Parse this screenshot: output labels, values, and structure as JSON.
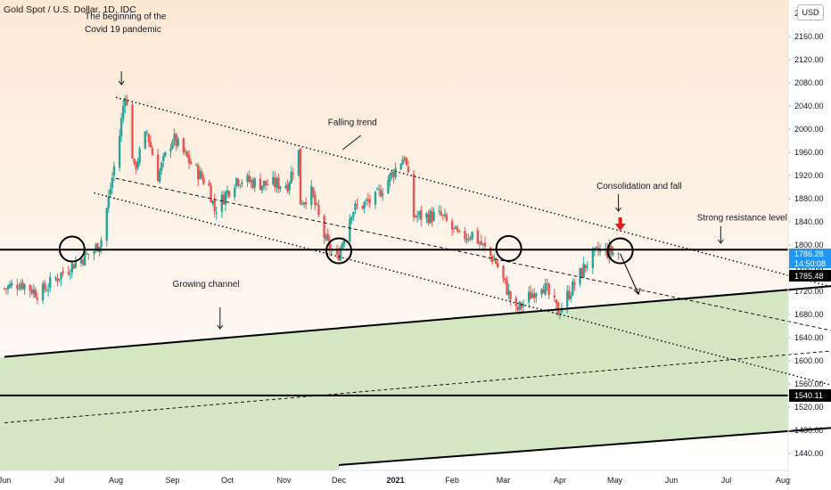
{
  "header": {
    "title": "Gold Spot / U.S. Dollar, 1D, IDC",
    "currency_button": "USD"
  },
  "colors": {
    "up": "#26a69a",
    "down": "#ef5350",
    "channel_fill": "#cfe3bd",
    "bg_top": "#fde8d4",
    "bg_bottom": "#ffffff",
    "line": "#000000",
    "arrow_red": "#e31b1b",
    "price_tag_blue": "#2196f3"
  },
  "chart_data": {
    "type": "candlestick",
    "title": "Gold Spot / U.S. Dollar, 1D, IDC",
    "y_axis": {
      "ylim": [
        1410,
        2240
      ],
      "ticks": [
        2160,
        2120,
        2080,
        2040,
        2000,
        1960,
        1920,
        1880,
        1840,
        1800,
        1760,
        1720,
        1680,
        1640,
        1600,
        1560,
        1520,
        1480,
        1440
      ],
      "tick_labels": [
        "2160.00",
        "2120.00",
        "2080.00",
        "2040.00",
        "2000.00",
        "1960.00",
        "1920.00",
        "1880.00",
        "1840.00",
        "1800.00",
        "1760.00",
        "1720.00",
        "1680.00",
        "1640.00",
        "1600.00",
        "1560.00",
        "1520.00",
        "1480.00",
        "1440.00"
      ],
      "top_partial_label": "22"
    },
    "x_axis": {
      "range": [
        "2020-06-01",
        "2021-08-31"
      ],
      "ticks": [
        {
          "label": "Jun",
          "date": "2020-06-01"
        },
        {
          "label": "Jul",
          "date": "2020-07-01"
        },
        {
          "label": "Aug",
          "date": "2020-08-01"
        },
        {
          "label": "Sep",
          "date": "2020-09-01"
        },
        {
          "label": "Oct",
          "date": "2020-10-01"
        },
        {
          "label": "Nov",
          "date": "2020-11-01"
        },
        {
          "label": "Dec",
          "date": "2020-12-01"
        },
        {
          "label": "2021",
          "date": "2021-01-01",
          "bold": true
        },
        {
          "label": "Feb",
          "date": "2021-02-01"
        },
        {
          "label": "Mar",
          "date": "2021-03-01"
        },
        {
          "label": "Apr",
          "date": "2021-04-01"
        },
        {
          "label": "May",
          "date": "2021-05-01"
        },
        {
          "label": "Jun",
          "date": "2021-06-01"
        },
        {
          "label": "Jul",
          "date": "2021-07-01"
        },
        {
          "label": "Aug",
          "date": "2021-08-01"
        }
      ]
    },
    "price_path": [
      [
        "2020-06-01",
        1725
      ],
      [
        "2020-06-10",
        1735
      ],
      [
        "2020-06-20",
        1715
      ],
      [
        "2020-06-30",
        1745
      ],
      [
        "2020-07-10",
        1770
      ],
      [
        "2020-07-20",
        1790
      ],
      [
        "2020-07-24",
        1810
      ],
      [
        "2020-07-28",
        1880
      ],
      [
        "2020-08-03",
        1990
      ],
      [
        "2020-08-06",
        2065
      ],
      [
        "2020-08-11",
        1930
      ],
      [
        "2020-08-18",
        1995
      ],
      [
        "2020-08-24",
        1920
      ],
      [
        "2020-09-01",
        1985
      ],
      [
        "2020-09-10",
        1945
      ],
      [
        "2020-09-21",
        1900
      ],
      [
        "2020-09-24",
        1860
      ],
      [
        "2020-10-06",
        1915
      ],
      [
        "2020-10-20",
        1905
      ],
      [
        "2020-11-03",
        1905
      ],
      [
        "2020-11-09",
        1960
      ],
      [
        "2020-11-10",
        1875
      ],
      [
        "2020-11-16",
        1890
      ],
      [
        "2020-11-24",
        1805
      ],
      [
        "2020-11-30",
        1775
      ],
      [
        "2020-12-08",
        1860
      ],
      [
        "2020-12-21",
        1880
      ],
      [
        "2021-01-06",
        1955
      ],
      [
        "2021-01-11",
        1850
      ],
      [
        "2021-01-26",
        1850
      ],
      [
        "2021-02-05",
        1812
      ],
      [
        "2021-02-12",
        1820
      ],
      [
        "2021-02-25",
        1770
      ],
      [
        "2021-03-08",
        1685
      ],
      [
        "2021-03-22",
        1735
      ],
      [
        "2021-03-31",
        1685
      ],
      [
        "2021-04-15",
        1765
      ],
      [
        "2021-04-22",
        1790
      ],
      [
        "2021-05-03",
        1786
      ]
    ],
    "horizontal_levels": [
      {
        "value": 1792,
        "label": "Strong resistance level"
      },
      {
        "value": 1540.11,
        "tag": "1540.11"
      }
    ],
    "price_tags": {
      "current": "1786.28",
      "countdown": "14:50:08",
      "level": "1785.48"
    },
    "lines": {
      "falling_trend_top": {
        "from": [
          "2020-08-01",
          2055
        ],
        "to": [
          "2021-08-31",
          1725
        ]
      },
      "falling_trend_mid": {
        "from": [
          "2020-08-01",
          1915
        ],
        "to": [
          "2021-08-31",
          1650
        ]
      },
      "falling_trend_bottom": {
        "from": [
          "2020-07-20",
          1890
        ],
        "to": [
          "2021-08-31",
          1555
        ]
      },
      "growing_channel_top": {
        "from": [
          "2020-06-01",
          1607
        ],
        "to": [
          "2021-08-31",
          1730
        ]
      },
      "growing_channel_mid": {
        "from": [
          "2020-06-01",
          1493
        ],
        "to": [
          "2021-08-31",
          1618
        ]
      },
      "growing_channel_bottom": {
        "from": [
          "2020-12-01",
          1420
        ],
        "to": [
          "2021-08-31",
          1485
        ]
      },
      "projection_arrow": {
        "from": [
          "2021-05-04",
          1785
        ],
        "to": [
          "2021-05-14",
          1715
        ]
      }
    },
    "circles": [
      {
        "date": "2020-07-08",
        "value": 1793
      },
      {
        "date": "2020-12-01",
        "value": 1790
      },
      {
        "date": "2021-03-04",
        "value": 1794
      },
      {
        "date": "2021-05-04",
        "value": 1790
      }
    ],
    "annotations": [
      {
        "text": "The beginning of the",
        "date": "2020-07-15",
        "value": 2190
      },
      {
        "text": "Covid 19 pandemic",
        "date": "2020-07-15",
        "value": 2168
      },
      {
        "text": "Falling trend",
        "date": "2020-11-25",
        "value": 2007
      },
      {
        "text": "Consolidation and fall",
        "date": "2021-04-21",
        "value": 1897
      },
      {
        "text": "Strong resistance level",
        "date": "2021-06-15",
        "value": 1842
      },
      {
        "text": "Growing channel",
        "date": "2020-09-01",
        "value": 1728
      }
    ]
  }
}
